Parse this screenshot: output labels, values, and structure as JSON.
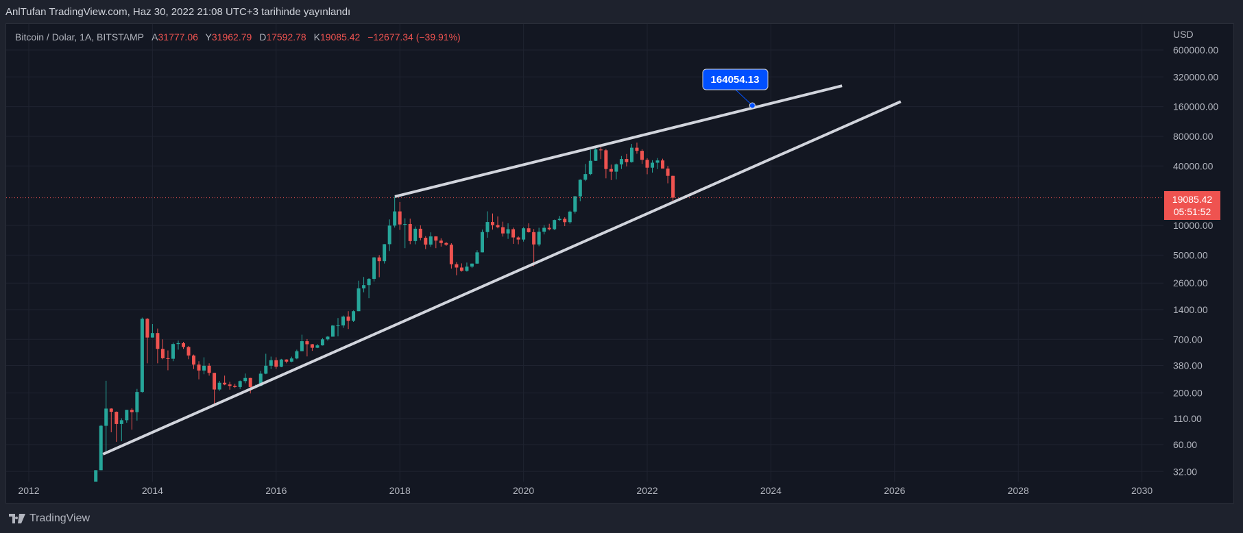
{
  "header": {
    "published": "AnlTufan TradingView.com, Haz 30, 2022 21:08 UTC+3 tarihinde yayınlandı"
  },
  "legend": {
    "symbol": "Bitcoin / Dolar, 1A, BITSTAMP",
    "open_label": "A",
    "open": "31777.06",
    "high_label": "Y",
    "high": "31962.79",
    "low_label": "D",
    "low": "17592.78",
    "close_label": "K",
    "close": "19085.42",
    "change": "−12677.34 (−39.91%)"
  },
  "colors": {
    "up": "#26a69a",
    "down": "#ef5350",
    "accent": "#0050ff",
    "line": "#d1d4dc"
  },
  "price_axis": {
    "currency": "USD",
    "ticks": [
      600000,
      320000,
      160000,
      80000,
      40000,
      10000,
      5000,
      2600,
      1400,
      700,
      380,
      200,
      110,
      60,
      32
    ],
    "tick_labels": [
      "600000.00",
      "320000.00",
      "160000.00",
      "80000.00",
      "40000.00",
      "10000.00",
      "5000.00",
      "2600.00",
      "1400.00",
      "700.00",
      "380.00",
      "200.00",
      "110.00",
      "60.00",
      "32.00"
    ],
    "current_price": 19085.42,
    "current_price_label": "19085.42",
    "countdown": "05:51:52"
  },
  "time_axis": {
    "ticks": [
      2012,
      2014,
      2016,
      2018,
      2020,
      2022,
      2024,
      2026,
      2028,
      2030
    ],
    "tick_labels": [
      "2012",
      "2014",
      "2016",
      "2018",
      "2020",
      "2022",
      "2024",
      "2026",
      "2028",
      "2030"
    ]
  },
  "annotation": {
    "label": "164054.13",
    "price": 164054.13,
    "time": 2023.7
  },
  "trendlines": [
    {
      "name": "upper",
      "from": {
        "time": 2017.92,
        "price": 19600
      },
      "to": {
        "time": 2025.15,
        "price": 260000
      }
    },
    {
      "name": "lower",
      "from": {
        "time": 2013.2,
        "price": 48
      },
      "to": {
        "time": 2026.1,
        "price": 180000
      }
    }
  ],
  "candles": {
    "start": "2013-02",
    "ohlc": [
      [
        20,
        33,
        20,
        33
      ],
      [
        33,
        95,
        33,
        93
      ],
      [
        93,
        266,
        50,
        139
      ],
      [
        139,
        140,
        80,
        129
      ],
      [
        129,
        130,
        64,
        97
      ],
      [
        97,
        111,
        65,
        106
      ],
      [
        106,
        135,
        100,
        135
      ],
      [
        135,
        140,
        85,
        128
      ],
      [
        128,
        220,
        105,
        205
      ],
      [
        205,
        1163,
        202,
        1130
      ],
      [
        1130,
        1150,
        400,
        730
      ],
      [
        730,
        1000,
        730,
        810
      ],
      [
        810,
        900,
        400,
        560
      ],
      [
        560,
        700,
        440,
        450
      ],
      [
        450,
        540,
        340,
        445
      ],
      [
        445,
        650,
        420,
        627
      ],
      [
        627,
        680,
        550,
        640
      ],
      [
        640,
        660,
        560,
        585
      ],
      [
        585,
        600,
        440,
        480
      ],
      [
        480,
        490,
        350,
        388
      ],
      [
        388,
        420,
        275,
        338
      ],
      [
        338,
        460,
        310,
        378
      ],
      [
        378,
        400,
        300,
        320
      ],
      [
        320,
        320,
        150,
        217
      ],
      [
        217,
        265,
        210,
        254
      ],
      [
        254,
        300,
        240,
        244
      ],
      [
        244,
        260,
        216,
        236
      ],
      [
        236,
        248,
        225,
        230
      ],
      [
        230,
        268,
        220,
        264
      ],
      [
        264,
        315,
        251,
        284
      ],
      [
        284,
        285,
        198,
        230
      ],
      [
        230,
        243,
        223,
        236
      ],
      [
        236,
        335,
        235,
        314
      ],
      [
        314,
        500,
        310,
        378
      ],
      [
        378,
        468,
        350,
        430
      ],
      [
        430,
        460,
        350,
        369
      ],
      [
        369,
        444,
        365,
        437
      ],
      [
        437,
        440,
        400,
        416
      ],
      [
        416,
        467,
        410,
        448
      ],
      [
        448,
        550,
        440,
        531
      ],
      [
        531,
        780,
        531,
        670
      ],
      [
        670,
        705,
        470,
        624
      ],
      [
        624,
        628,
        535,
        575
      ],
      [
        575,
        628,
        570,
        608
      ],
      [
        608,
        720,
        605,
        700
      ],
      [
        700,
        756,
        680,
        745
      ],
      [
        745,
        975,
        745,
        966
      ],
      [
        966,
        1150,
        750,
        968
      ],
      [
        968,
        1220,
        915,
        1190
      ],
      [
        1190,
        1350,
        890,
        1080
      ],
      [
        1080,
        1375,
        1050,
        1350
      ],
      [
        1350,
        2750,
        1350,
        2300
      ],
      [
        2300,
        3000,
        2100,
        2480
      ],
      [
        2480,
        2920,
        1830,
        2870
      ],
      [
        2870,
        4800,
        2700,
        4735
      ],
      [
        4735,
        5000,
        2980,
        4340
      ],
      [
        4340,
        6470,
        4110,
        6450
      ],
      [
        6450,
        11500,
        5500,
        9950
      ],
      [
        9950,
        19666,
        9500,
        13860
      ],
      [
        13860,
        17250,
        9000,
        10220
      ],
      [
        10220,
        11790,
        5880,
        10330
      ],
      [
        10330,
        11700,
        6450,
        6940
      ],
      [
        6940,
        9750,
        6430,
        9250
      ],
      [
        9250,
        10000,
        7060,
        7490
      ],
      [
        7490,
        7780,
        5750,
        6390
      ],
      [
        6390,
        8500,
        6070,
        7730
      ],
      [
        7730,
        7760,
        5880,
        7010
      ],
      [
        7010,
        7400,
        6100,
        6630
      ],
      [
        6630,
        6800,
        6200,
        6370
      ],
      [
        6370,
        6590,
        3650,
        4040
      ],
      [
        4040,
        4240,
        3120,
        3740
      ],
      [
        3740,
        4120,
        3400,
        3460
      ],
      [
        3460,
        4200,
        3400,
        3820
      ],
      [
        3820,
        4120,
        3700,
        4100
      ],
      [
        4100,
        5600,
        4080,
        5330
      ],
      [
        5330,
        9070,
        5330,
        8560
      ],
      [
        8560,
        13880,
        7500,
        10820
      ],
      [
        10820,
        13200,
        9060,
        10080
      ],
      [
        10080,
        12330,
        9350,
        9590
      ],
      [
        9590,
        10900,
        7700,
        8290
      ],
      [
        8290,
        10500,
        7300,
        9150
      ],
      [
        9150,
        9500,
        6500,
        7550
      ],
      [
        7550,
        7750,
        6430,
        7190
      ],
      [
        7190,
        9600,
        6850,
        9350
      ],
      [
        9350,
        10500,
        8450,
        8540
      ],
      [
        8540,
        9190,
        3850,
        6410
      ],
      [
        6410,
        9460,
        6150,
        8620
      ],
      [
        8620,
        10070,
        8100,
        9450
      ],
      [
        9450,
        10380,
        8900,
        9140
      ],
      [
        9140,
        11450,
        8980,
        11340
      ],
      [
        11340,
        12470,
        11100,
        11650
      ],
      [
        11650,
        12100,
        9830,
        10780
      ],
      [
        10780,
        14100,
        10400,
        13800
      ],
      [
        13800,
        19850,
        13200,
        19700
      ],
      [
        19700,
        29300,
        17600,
        28990
      ],
      [
        28990,
        41950,
        28130,
        33110
      ],
      [
        33110,
        58350,
        32300,
        45160
      ],
      [
        45160,
        61700,
        44950,
        58800
      ],
      [
        58800,
        64900,
        47000,
        57720
      ],
      [
        57720,
        59600,
        30000,
        37300
      ],
      [
        37300,
        41330,
        28800,
        35040
      ],
      [
        35040,
        42400,
        29300,
        41500
      ],
      [
        41500,
        50500,
        37330,
        47100
      ],
      [
        47100,
        52950,
        39600,
        43820
      ],
      [
        43820,
        67000,
        43300,
        61300
      ],
      [
        61300,
        69000,
        53250,
        57000
      ],
      [
        57000,
        59100,
        42000,
        46200
      ],
      [
        46200,
        47990,
        32950,
        38480
      ],
      [
        38480,
        45800,
        34320,
        43190
      ],
      [
        43190,
        48200,
        37200,
        45540
      ],
      [
        45540,
        47450,
        37700,
        37650
      ],
      [
        37650,
        40000,
        26700,
        31780
      ],
      [
        31777.06,
        31962.79,
        17592.78,
        19085.42
      ]
    ]
  },
  "footer": {
    "brand": "TradingView"
  }
}
